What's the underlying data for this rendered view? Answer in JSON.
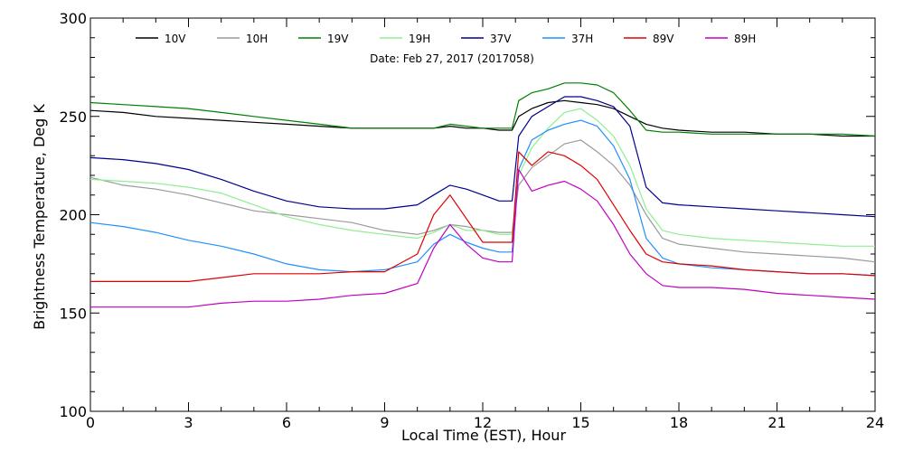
{
  "chart_data": {
    "type": "line",
    "xlabel": "Local Time (EST), Hour",
    "ylabel": "Brightness Temperature, Deg K",
    "annotation": "Date: Feb 27, 2017 (2017058)",
    "xlim": [
      0,
      24
    ],
    "ylim": [
      100,
      300
    ],
    "x_ticks": [
      0,
      3,
      6,
      9,
      12,
      15,
      18,
      21,
      24
    ],
    "y_ticks": [
      100,
      150,
      200,
      250,
      300
    ],
    "grid": false,
    "legend_position": "top",
    "x": [
      0,
      1,
      2,
      3,
      4,
      5,
      6,
      7,
      8,
      9,
      10,
      10.5,
      11,
      11.5,
      12,
      12.5,
      12.9,
      13.1,
      13.5,
      14,
      14.5,
      15,
      15.5,
      16,
      16.5,
      17,
      17.5,
      18,
      19,
      20,
      21,
      22,
      23,
      24
    ],
    "series": [
      {
        "name": "10V",
        "color": "#000000",
        "values": [
          253,
          252,
          250,
          249,
          248,
          247,
          246,
          245,
          244,
          244,
          244,
          244,
          245,
          244,
          244,
          243,
          243,
          250,
          254,
          257,
          258,
          257,
          256,
          254,
          250,
          246,
          244,
          243,
          242,
          242,
          241,
          241,
          240,
          240
        ]
      },
      {
        "name": "10H",
        "color": "#999999",
        "values": [
          219,
          215,
          213,
          210,
          206,
          202,
          200,
          198,
          196,
          192,
          190,
          192,
          195,
          194,
          192,
          191,
          191,
          215,
          224,
          230,
          236,
          238,
          232,
          225,
          215,
          200,
          188,
          185,
          183,
          181,
          180,
          179,
          178,
          176
        ]
      },
      {
        "name": "19V",
        "color": "#008000",
        "values": [
          257,
          256,
          255,
          254,
          252,
          250,
          248,
          246,
          244,
          244,
          244,
          244,
          246,
          245,
          244,
          244,
          244,
          258,
          262,
          264,
          267,
          267,
          266,
          262,
          253,
          243,
          242,
          242,
          241,
          241,
          241,
          241,
          241,
          240
        ]
      },
      {
        "name": "19H",
        "color": "#90ee90",
        "values": [
          218,
          217,
          216,
          214,
          211,
          205,
          199,
          195,
          192,
          190,
          188,
          191,
          195,
          192,
          192,
          190,
          190,
          220,
          234,
          244,
          252,
          254,
          248,
          240,
          225,
          203,
          192,
          190,
          188,
          187,
          186,
          185,
          184,
          184
        ]
      },
      {
        "name": "37V",
        "color": "#00008b",
        "values": [
          229,
          228,
          226,
          223,
          218,
          212,
          207,
          204,
          203,
          203,
          205,
          210,
          215,
          213,
          210,
          207,
          207,
          240,
          250,
          255,
          260,
          260,
          258,
          255,
          245,
          214,
          206,
          205,
          204,
          203,
          202,
          201,
          200,
          199
        ]
      },
      {
        "name": "37H",
        "color": "#1e90ff",
        "values": [
          196,
          194,
          191,
          187,
          184,
          180,
          175,
          172,
          171,
          172,
          176,
          185,
          190,
          186,
          183,
          181,
          181,
          223,
          238,
          243,
          246,
          248,
          245,
          235,
          218,
          188,
          178,
          175,
          173,
          172,
          171,
          170,
          170,
          169
        ]
      },
      {
        "name": "89V",
        "color": "#e00000",
        "values": [
          166,
          166,
          166,
          166,
          168,
          170,
          170,
          170,
          171,
          171,
          180,
          200,
          210,
          198,
          186,
          186,
          186,
          232,
          225,
          232,
          230,
          225,
          218,
          205,
          192,
          180,
          176,
          175,
          174,
          172,
          171,
          170,
          170,
          169
        ]
      },
      {
        "name": "89H",
        "color": "#c000c0",
        "values": [
          153,
          153,
          153,
          153,
          155,
          156,
          156,
          157,
          159,
          160,
          165,
          183,
          195,
          185,
          178,
          176,
          176,
          223,
          212,
          215,
          217,
          213,
          207,
          195,
          180,
          170,
          164,
          163,
          163,
          162,
          160,
          159,
          158,
          157
        ]
      }
    ]
  }
}
